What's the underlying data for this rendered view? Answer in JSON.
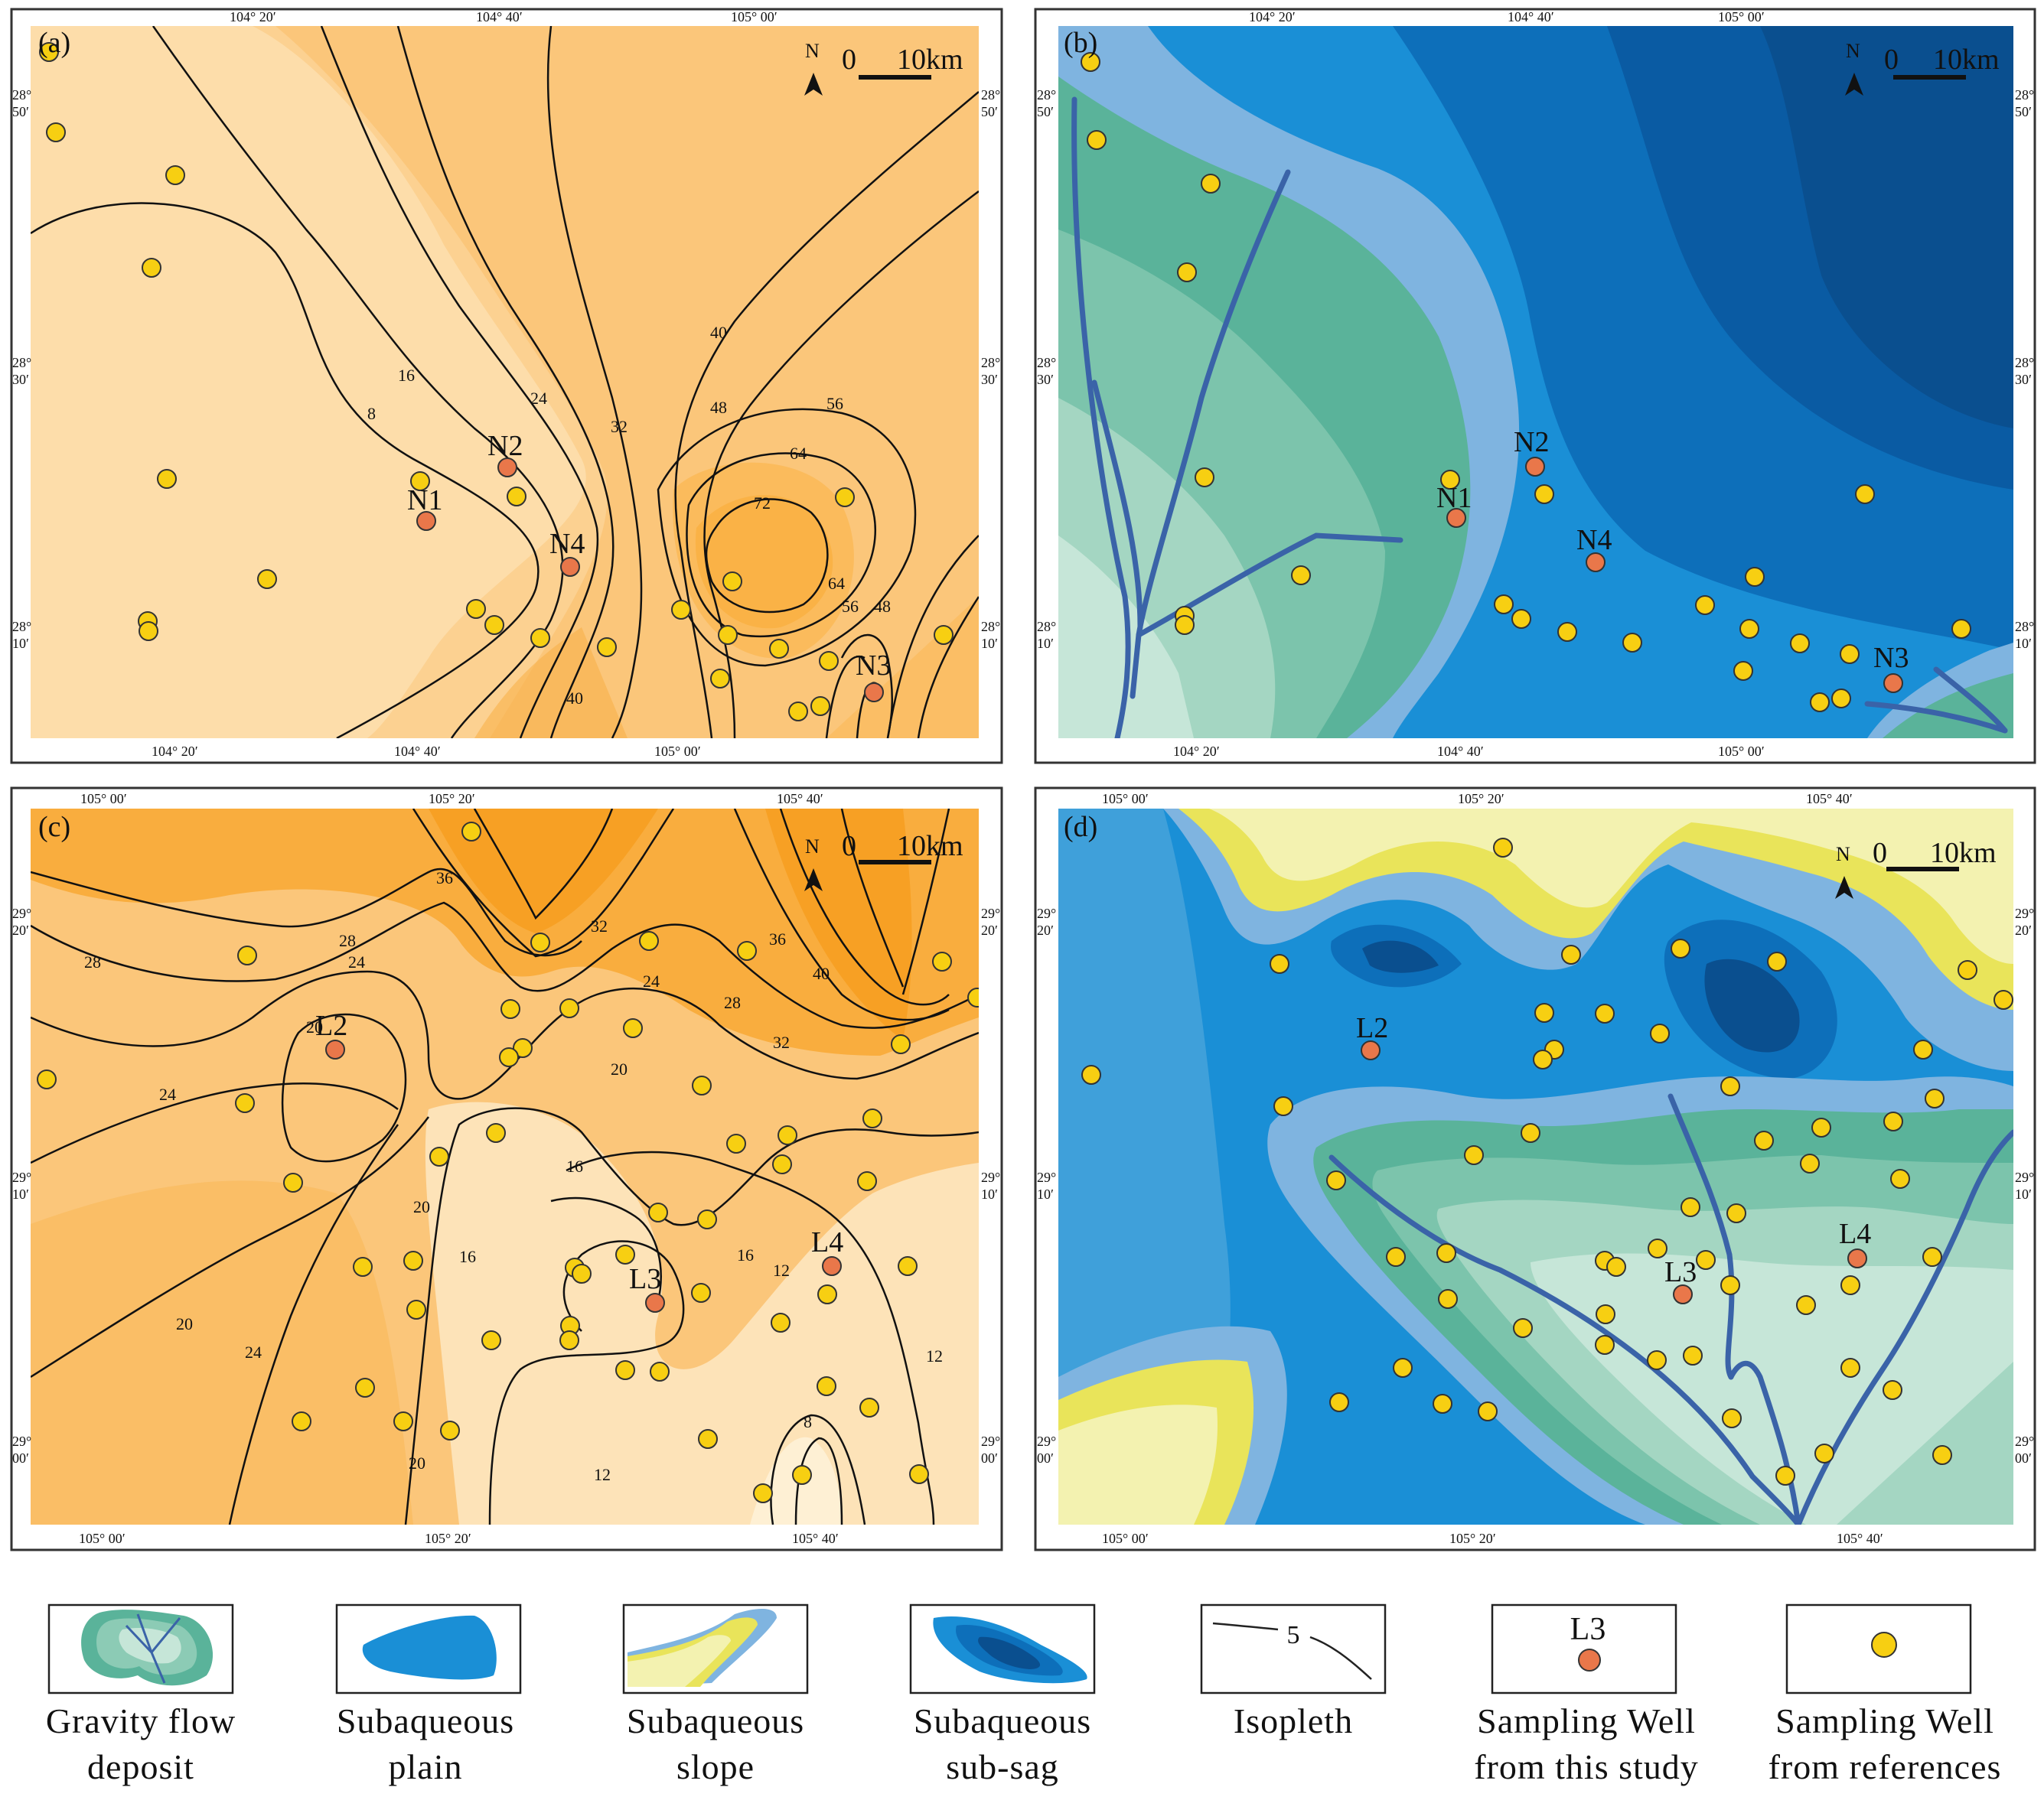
{
  "colors": {
    "orange_light": "#fde3b8",
    "orange_mid": "#fbc67a",
    "orange_dark": "#f7a024",
    "plain_blue": "#1a8fd6",
    "deep_blue_1": "#0d6fba",
    "deep_blue_2": "#0a4f8f",
    "slope_light_blue": "#7fb4e0",
    "gravity_green": "#5ab39a",
    "gravity_light": "#b9e0cf",
    "slope_yellow": "#e9e45a",
    "slope_pale": "#f3f2b0",
    "well_study": "#e9774a",
    "well_reference": "#f7cf12",
    "channel": "#3a63a8"
  },
  "scale_bar": {
    "zero": "0",
    "distance": "10km",
    "north": "N"
  },
  "panel_a": {
    "label": "(a)",
    "top_ticks": [
      "104° 20′",
      "104° 40′",
      "105° 00′"
    ],
    "bottom_ticks": [
      "104° 20′",
      "104° 40′",
      "105° 00′"
    ],
    "lat_ticks": [
      [
        "28°",
        "50′"
      ],
      [
        "28°",
        "30′"
      ],
      [
        "28°",
        "10′"
      ]
    ],
    "contour_labels": [
      "8",
      "16",
      "24",
      "32",
      "40",
      "40",
      "48",
      "56",
      "64",
      "72",
      "64",
      "56",
      "48"
    ],
    "wells": [
      "N1",
      "N2",
      "N4",
      "N3"
    ]
  },
  "panel_b": {
    "label": "(b)",
    "top_ticks": [
      "104° 20′",
      "104° 40′",
      "105° 00′"
    ],
    "bottom_ticks": [
      "104° 20′",
      "104° 40′",
      "105° 00′"
    ],
    "lat_ticks": [
      [
        "28°",
        "50′"
      ],
      [
        "28°",
        "30′"
      ],
      [
        "28°",
        "10′"
      ]
    ],
    "wells": [
      "N2",
      "N1",
      "N4",
      "N3"
    ]
  },
  "panel_c": {
    "label": "(c)",
    "top_ticks": [
      "105° 00′",
      "105° 20′",
      "105° 40′"
    ],
    "bottom_ticks": [
      "105° 00′",
      "105° 20′",
      "105° 40′"
    ],
    "lat_ticks": [
      [
        "29°",
        "20′"
      ],
      [
        "29°",
        "10′"
      ],
      [
        "29°",
        "00′"
      ]
    ],
    "contour_labels": [
      "28",
      "28",
      "36",
      "32",
      "36",
      "40",
      "24",
      "24",
      "28",
      "32",
      "20",
      "24",
      "20",
      "16",
      "20",
      "16",
      "16",
      "12",
      "12",
      "20",
      "24",
      "20",
      "8",
      "12"
    ],
    "wells": [
      "L2",
      "L3",
      "L4"
    ]
  },
  "panel_d": {
    "label": "(d)",
    "top_ticks": [
      "105° 00′",
      "105° 20′",
      "105° 40′"
    ],
    "bottom_ticks": [
      "105° 00′",
      "105° 20′",
      "105° 40′"
    ],
    "lat_ticks": [
      [
        "29°",
        "20′"
      ],
      [
        "29°",
        "10′"
      ],
      [
        "29°",
        "00′"
      ]
    ],
    "wells": [
      "L2",
      "L3",
      "L4"
    ]
  },
  "legend": {
    "gravity": [
      "Gravity flow",
      "deposit"
    ],
    "plain": [
      "Subaqueous",
      "plain"
    ],
    "slope": [
      "Subaqueous",
      "slope"
    ],
    "subsag": [
      "Subaqueous",
      "sub-sag"
    ],
    "isopleth": [
      "Isopleth"
    ],
    "isopleth_sample": "5",
    "study_well": [
      "Sampling Well",
      "from this study"
    ],
    "study_well_sample": "L3",
    "ref_well": [
      "Sampling Well",
      "from references"
    ]
  }
}
